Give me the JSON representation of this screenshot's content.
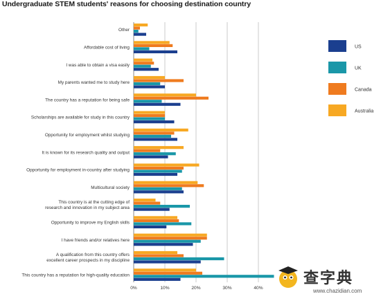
{
  "chart_data": {
    "type": "bar",
    "orientation": "horizontal",
    "title": "Undergraduate STEM students' reasons for choosing destination country",
    "xlabel": "",
    "ylabel": "",
    "xlim": [
      0,
      45
    ],
    "x_ticks": [
      "0%",
      "10%",
      "20%",
      "30%",
      "40%"
    ],
    "grid": true,
    "legend_position": "right",
    "categories": [
      "Other",
      "Affordable cost of living",
      "I was able to obtain a visa easily",
      "My parents wanted me to study here",
      "The country has a reputation for being safe",
      "Scholarships are available for study in this country",
      "Opportunity for employment whilst studying",
      "It is known for its research quality and output",
      "Opportunity for employment in-country after studying",
      "Multicultural society",
      "This country is at the cutting edge of research and innovation in my subject area",
      "Opportunity to improve my English skills",
      "I have friends and/or relatives here",
      "A qualification from this country offers excellent career prospects in my discipline",
      "This country has a reputation for high-quality education"
    ],
    "category_lines": [
      [
        "Other"
      ],
      [
        "Affordable cost of living"
      ],
      [
        "I was able to obtain a visa easily"
      ],
      [
        "My parents wanted me to study here"
      ],
      [
        "The country has a reputation for being safe"
      ],
      [
        "Scholarships are available for study in this country"
      ],
      [
        "Opportunity for employment whilst studying"
      ],
      [
        "It is known for its research quality and output"
      ],
      [
        "Opportunity for employment in-country after studying"
      ],
      [
        "Multicultural society"
      ],
      [
        "This country is at the cutting edge of",
        "research and innovation in my subject area"
      ],
      [
        "Opportunity to improve my English skills"
      ],
      [
        "I have friends and/or relatives here"
      ],
      [
        "A qualification from this country offers",
        "excellent career prospects in my discipline"
      ],
      [
        "This country has a reputation for high-quality education"
      ]
    ],
    "series": [
      {
        "name": "Australia",
        "color": "#f7a823",
        "values": [
          4.5,
          11.5,
          6,
          10,
          20,
          10,
          17.5,
          16,
          21,
          20.5,
          7,
          14,
          23.5,
          14,
          20
        ]
      },
      {
        "name": "Canada",
        "color": "#ef7b1f",
        "values": [
          2,
          12.5,
          6.5,
          16,
          24,
          10,
          13,
          8.5,
          16,
          22.5,
          8.5,
          14.5,
          23.5,
          16,
          22
        ]
      },
      {
        "name": "UK",
        "color": "#1a97a8",
        "values": [
          1.5,
          5,
          5.5,
          8.5,
          9,
          10,
          12,
          13.5,
          15.5,
          15.5,
          18,
          18.5,
          21.5,
          29,
          45
        ]
      },
      {
        "name": "US",
        "color": "#1b3f8f",
        "values": [
          4,
          14,
          8,
          10,
          15,
          13,
          14,
          11,
          14,
          16,
          11.5,
          10.5,
          19,
          21.5,
          15
        ]
      }
    ],
    "legend_order": [
      "US",
      "UK",
      "Canada",
      "Australia"
    ]
  },
  "watermark": {
    "text": "查字典",
    "url": "www.chazidian.com"
  }
}
